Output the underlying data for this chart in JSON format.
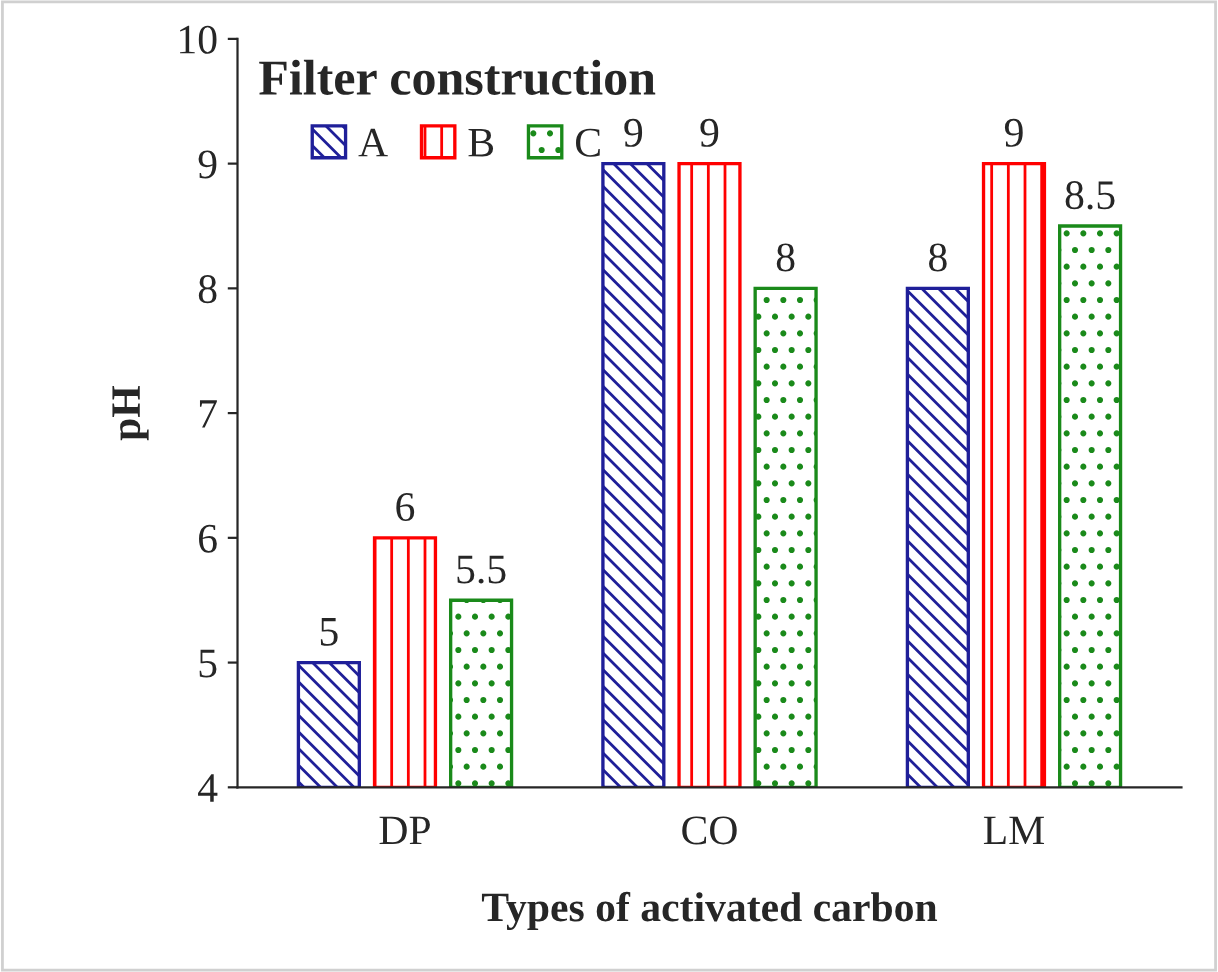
{
  "chart_data": {
    "type": "bar",
    "xlabel": "Types of activated carbon",
    "ylabel": "pH",
    "legend_title": "Filter construction",
    "categories": [
      "DP",
      "CO",
      "LM"
    ],
    "series": [
      {
        "name": "A",
        "color": "#1f1f99",
        "values": [
          5,
          9,
          8
        ]
      },
      {
        "name": "B",
        "color": "#ff0000",
        "values": [
          6,
          9,
          9
        ]
      },
      {
        "name": "C",
        "color": "#1a8a1a",
        "values": [
          5.5,
          8,
          8.5
        ]
      }
    ],
    "ylim": [
      4,
      10
    ],
    "yticks": [
      4,
      5,
      6,
      7,
      8,
      9,
      10
    ],
    "grid": false,
    "legend": "top left",
    "data_labels": true
  }
}
